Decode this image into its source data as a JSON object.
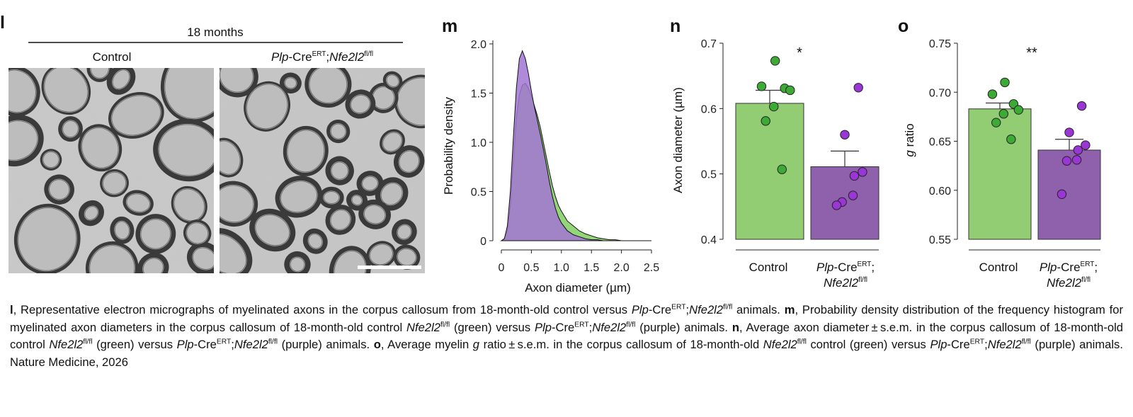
{
  "panels": {
    "l": {
      "letter": "l",
      "header": "18 months",
      "left_title": "Control",
      "right_title_parts": [
        "Plp",
        "-Cre",
        "ERT",
        ";",
        "Nfe2l2",
        "fl/fl"
      ]
    },
    "m": {
      "letter": "m",
      "chart_data": {
        "type": "area",
        "xlabel": "Axon diameter (µm)",
        "ylabel": "Probability density",
        "xlim": [
          -0.1,
          2.6
        ],
        "ylim": [
          -0.05,
          2.05
        ],
        "x_ticks": [
          "0",
          "0.5",
          "1.0",
          "1.5",
          "2.0",
          "2.5"
        ],
        "y_ticks": [
          "0",
          "0.5",
          "1.0",
          "1.5",
          "2.0"
        ],
        "grid": false,
        "series": [
          {
            "color": "#93d679",
            "x": [
              0,
              0.05,
              0.1,
              0.15,
              0.2,
              0.25,
              0.3,
              0.35,
              0.4,
              0.45,
              0.5,
              0.55,
              0.6,
              0.65,
              0.7,
              0.75,
              0.8,
              0.85,
              0.9,
              0.95,
              1.0,
              1.1,
              1.2,
              1.3,
              1.4,
              1.5,
              1.6,
              1.7,
              1.8,
              1.9,
              2.0,
              2.2,
              2.4,
              2.5
            ],
            "y": [
              0.0,
              0.02,
              0.1,
              0.35,
              0.8,
              1.25,
              1.48,
              1.58,
              1.6,
              1.55,
              1.47,
              1.37,
              1.27,
              1.15,
              1.0,
              0.85,
              0.7,
              0.56,
              0.45,
              0.36,
              0.3,
              0.2,
              0.15,
              0.1,
              0.07,
              0.05,
              0.03,
              0.02,
              0.01,
              0.01,
              0.0,
              0.0,
              0.0,
              0.0
            ]
          },
          {
            "color": "#a276d3",
            "x": [
              0,
              0.05,
              0.1,
              0.15,
              0.2,
              0.25,
              0.3,
              0.35,
              0.4,
              0.45,
              0.5,
              0.55,
              0.6,
              0.65,
              0.7,
              0.75,
              0.8,
              0.85,
              0.9,
              0.95,
              1.0,
              1.1,
              1.2,
              1.3,
              1.4,
              1.5,
              1.6,
              1.7,
              1.8,
              1.9,
              2.0,
              2.2,
              2.4,
              2.5
            ],
            "y": [
              0.0,
              0.02,
              0.15,
              0.5,
              1.05,
              1.55,
              1.85,
              1.93,
              1.85,
              1.7,
              1.52,
              1.36,
              1.22,
              1.08,
              0.93,
              0.77,
              0.6,
              0.45,
              0.33,
              0.24,
              0.18,
              0.1,
              0.06,
              0.04,
              0.02,
              0.01,
              0.01,
              0.0,
              0.0,
              0.0,
              0.0,
              0.0,
              0.0,
              0.0
            ]
          }
        ]
      }
    },
    "n": {
      "letter": "n",
      "significance": "*",
      "chart_data": {
        "type": "bar",
        "ylabel": "Axon diameter (µm)",
        "ylim": [
          0.4,
          0.7
        ],
        "y_ticks": [
          "0.4",
          "0.5",
          "0.6",
          "0.7"
        ],
        "categories": [
          "Control",
          "Plp-CreERT;Nfe2l2fl/fl"
        ],
        "values": [
          0.608,
          0.511
        ],
        "sem": [
          0.02,
          0.024
        ],
        "colors": [
          "#92cd74",
          "#8f61ad"
        ],
        "points": [
          [
            0.673,
            0.634,
            0.631,
            0.628,
            0.603,
            0.581,
            0.507
          ],
          [
            0.632,
            0.56,
            0.503,
            0.497,
            0.467,
            0.457,
            0.452
          ]
        ]
      }
    },
    "o": {
      "letter": "o",
      "significance": "**",
      "chart_data": {
        "type": "bar",
        "ylabel": "g ratio",
        "ylim": [
          0.55,
          0.75
        ],
        "y_ticks": [
          "0.55",
          "0.60",
          "0.65",
          "0.70",
          "0.75"
        ],
        "categories": [
          "Control",
          "Plp-CreERT;Nfe2l2fl/fl"
        ],
        "values": [
          0.683,
          0.641
        ],
        "sem": [
          0.006,
          0.011
        ],
        "colors": [
          "#92cd74",
          "#8f61ad"
        ],
        "points": [
          [
            0.71,
            0.698,
            0.688,
            0.682,
            0.678,
            0.669,
            0.652
          ],
          [
            0.686,
            0.659,
            0.646,
            0.641,
            0.631,
            0.63,
            0.596
          ]
        ]
      }
    }
  },
  "x_labels": {
    "control": "Control",
    "treated_line1": [
      "Plp",
      "-Cre",
      "ERT",
      ";"
    ],
    "treated_line2": [
      "Nfe2l2",
      "fl/fl"
    ]
  },
  "caption": {
    "l_letter": "l",
    "l_text": ", Representative electron micrographs of myelinated axons in the corpus callosum from 18-month-old control versus ",
    "m_letter": "m",
    "m_text": ", Probability density distribution of the frequency histogram for myelinated axon diameters in the corpus callosum of 18-month-old control ",
    "n_letter": "n",
    "n_text": ", Average axon diameter ± s.e.m. in the corpus callosum of 18-month-old control ",
    "o_letter": "o",
    "o_text": ", Average myelin ",
    "o_text2": " ratio ± s.e.m. in the corpus callosum of 18-month-old ",
    "control_word": " control ",
    "green": " (green) versus ",
    "purple": " (purple) animals.",
    "animals": " animals.",
    "g_italic": "g",
    "plp": "Plp",
    "cre": "-Cre",
    "cre2": "Cre",
    "ert": "ERT",
    "semi": ";",
    "nfe": "Nfe2l2",
    "flfl": "fl/fl",
    "source": " Nature Medicine, 2026"
  }
}
